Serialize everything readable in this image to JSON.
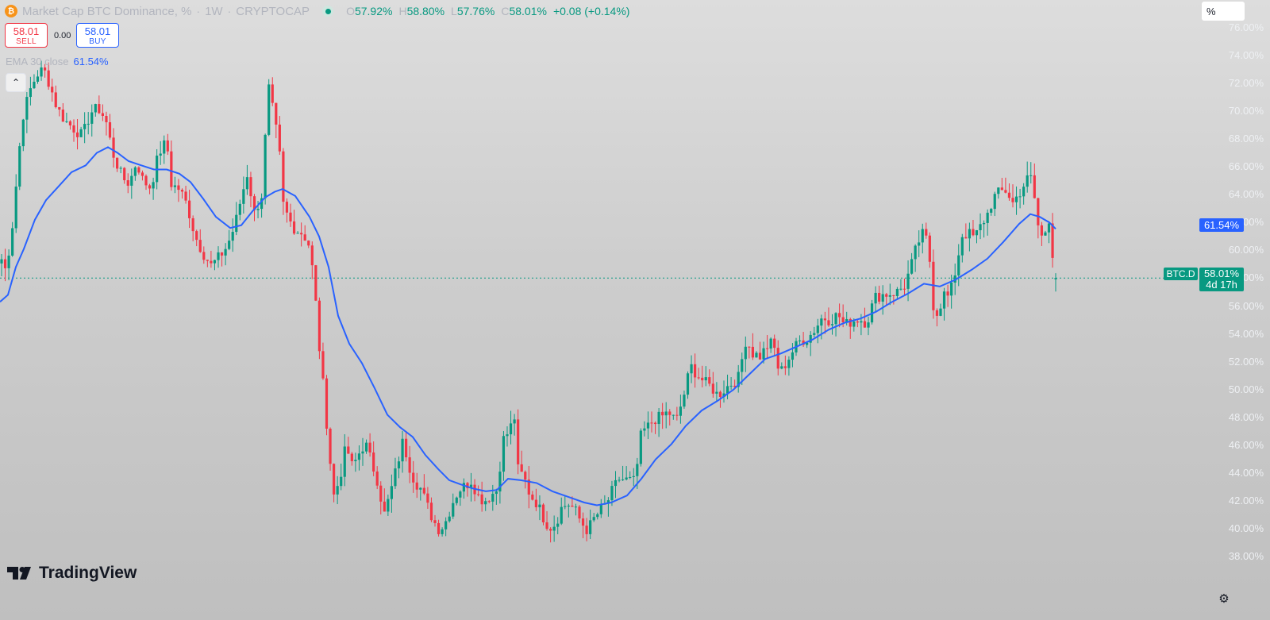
{
  "header": {
    "coin_icon": "bitcoin-icon",
    "coin_glyph": "₿",
    "title": "Market Cap BTC Dominance, %",
    "interval": "1W",
    "exchange": "CRYPTOCAP",
    "sep": "·",
    "ohlc": {
      "o_label": "O",
      "o": "57.92%",
      "h_label": "H",
      "h": "58.80%",
      "l_label": "L",
      "l": "57.76%",
      "c_label": "C",
      "c": "58.01%",
      "change": "+0.08 (+0.14%)"
    }
  },
  "trade": {
    "sell_price": "58.01",
    "sell_label": "SELL",
    "spread": "0.00",
    "buy_price": "58.01",
    "buy_label": "BUY"
  },
  "indicator": {
    "name": "EMA 30 close",
    "value": "61.54%"
  },
  "collapse_icon": "chevron-up-icon",
  "collapse_glyph": "⌃",
  "axis": {
    "unit": "%",
    "ema_tag": "61.54%",
    "symbol_tag": "BTC.D",
    "price_tag": "58.01%",
    "countdown": "4d 17h"
  },
  "brand": {
    "name": "TradingView",
    "logo_icon": "tradingview-logo-icon"
  },
  "settings_icon": "gear-icon",
  "colors": {
    "up": "#089981",
    "down": "#f23645",
    "ema": "#2962ff",
    "accent": "#2962ff"
  },
  "chart_data": {
    "type": "line",
    "title": "Market Cap BTC Dominance, %",
    "interval": "1W",
    "yaxis_side": "right",
    "ylim": [
      37.9,
      76.2
    ],
    "ytick_labels": [
      "76.00%",
      "74.00%",
      "72.00%",
      "70.00%",
      "68.00%",
      "66.00%",
      "64.00%",
      "62.00%",
      "60.00%",
      "58.00%",
      "56.00%",
      "54.00%",
      "52.00%",
      "50.00%",
      "48.00%",
      "46.00%",
      "44.00%",
      "42.00%",
      "40.00%",
      "38.00%"
    ],
    "grid": false,
    "current_price": 58.01,
    "series": [
      {
        "name": "BTC.D",
        "type": "candles",
        "color_up": "#089981",
        "color_down": "#f23645",
        "anchors": [
          [
            0,
            59.8
          ],
          [
            6,
            58.5
          ],
          [
            14,
            60.8
          ],
          [
            20,
            64.5
          ],
          [
            28,
            69.5
          ],
          [
            38,
            71.5
          ],
          [
            46,
            72.6
          ],
          [
            55,
            73.0
          ],
          [
            62,
            72.0
          ],
          [
            72,
            70.2
          ],
          [
            82,
            69.3
          ],
          [
            92,
            68.8
          ],
          [
            104,
            68.2
          ],
          [
            114,
            69.9
          ],
          [
            124,
            70.2
          ],
          [
            133,
            69.4
          ],
          [
            142,
            67.0
          ],
          [
            154,
            65.2
          ],
          [
            163,
            64.8
          ],
          [
            172,
            66.4
          ],
          [
            180,
            65.0
          ],
          [
            190,
            64.5
          ],
          [
            200,
            67.0
          ],
          [
            210,
            67.8
          ],
          [
            216,
            64.7
          ],
          [
            226,
            64.4
          ],
          [
            236,
            63.2
          ],
          [
            246,
            61.0
          ],
          [
            256,
            59.8
          ],
          [
            266,
            58.9
          ],
          [
            276,
            59.5
          ],
          [
            286,
            60.3
          ],
          [
            296,
            61.8
          ],
          [
            304,
            63.8
          ],
          [
            312,
            65.6
          ],
          [
            320,
            62.6
          ],
          [
            330,
            64.0
          ],
          [
            338,
            71.8
          ],
          [
            346,
            69.3
          ],
          [
            352,
            67.1
          ],
          [
            356,
            63.4
          ],
          [
            364,
            62.2
          ],
          [
            372,
            61.5
          ],
          [
            382,
            61.2
          ],
          [
            390,
            60.3
          ],
          [
            396,
            57.5
          ],
          [
            402,
            53.2
          ],
          [
            408,
            49.8
          ],
          [
            414,
            46.1
          ],
          [
            420,
            42.3
          ],
          [
            428,
            43.6
          ],
          [
            436,
            46.0
          ],
          [
            444,
            44.4
          ],
          [
            452,
            45.4
          ],
          [
            460,
            46.2
          ],
          [
            468,
            44.8
          ],
          [
            476,
            43.4
          ],
          [
            484,
            41.0
          ],
          [
            492,
            42.6
          ],
          [
            500,
            44.5
          ],
          [
            508,
            46.4
          ],
          [
            514,
            44.8
          ],
          [
            522,
            43.5
          ],
          [
            530,
            42.9
          ],
          [
            538,
            41.7
          ],
          [
            546,
            40.6
          ],
          [
            554,
            39.9
          ],
          [
            562,
            40.6
          ],
          [
            570,
            41.9
          ],
          [
            578,
            42.8
          ],
          [
            586,
            43.1
          ],
          [
            594,
            43.5
          ],
          [
            602,
            42.4
          ],
          [
            610,
            42.0
          ],
          [
            618,
            42.4
          ],
          [
            626,
            42.8
          ],
          [
            634,
            46.4
          ],
          [
            642,
            47.1
          ],
          [
            648,
            48.1
          ],
          [
            652,
            44.3
          ],
          [
            660,
            43.7
          ],
          [
            668,
            42.4
          ],
          [
            676,
            41.9
          ],
          [
            684,
            40.9
          ],
          [
            692,
            40.1
          ],
          [
            700,
            40.4
          ],
          [
            708,
            41.6
          ],
          [
            716,
            41.8
          ],
          [
            724,
            41.4
          ],
          [
            732,
            40.5
          ],
          [
            740,
            39.9
          ],
          [
            748,
            40.7
          ],
          [
            756,
            41.3
          ],
          [
            764,
            41.8
          ],
          [
            772,
            42.8
          ],
          [
            780,
            43.6
          ],
          [
            790,
            43.5
          ],
          [
            800,
            43.4
          ],
          [
            808,
            46.9
          ],
          [
            816,
            47.3
          ],
          [
            824,
            47.9
          ],
          [
            832,
            48.0
          ],
          [
            842,
            48.4
          ],
          [
            852,
            47.7
          ],
          [
            862,
            49.7
          ],
          [
            870,
            51.7
          ],
          [
            878,
            51.1
          ],
          [
            888,
            50.5
          ],
          [
            896,
            50.2
          ],
          [
            904,
            49.6
          ],
          [
            912,
            50.0
          ],
          [
            920,
            50.4
          ],
          [
            930,
            50.8
          ],
          [
            940,
            53.7
          ],
          [
            948,
            52.6
          ],
          [
            958,
            52.4
          ],
          [
            966,
            53.1
          ],
          [
            974,
            53.4
          ],
          [
            982,
            51.1
          ],
          [
            992,
            52.1
          ],
          [
            1000,
            52.9
          ],
          [
            1008,
            53.5
          ],
          [
            1018,
            53.7
          ],
          [
            1026,
            54.3
          ],
          [
            1036,
            55.2
          ],
          [
            1046,
            55.0
          ],
          [
            1056,
            55.4
          ],
          [
            1064,
            54.6
          ],
          [
            1072,
            54.9
          ],
          [
            1082,
            55.1
          ],
          [
            1092,
            54.8
          ],
          [
            1102,
            56.6
          ],
          [
            1110,
            56.8
          ],
          [
            1120,
            56.9
          ],
          [
            1130,
            57.0
          ],
          [
            1140,
            57.5
          ],
          [
            1148,
            58.9
          ],
          [
            1156,
            60.5
          ],
          [
            1164,
            61.3
          ],
          [
            1170,
            60.2
          ],
          [
            1176,
            56.0
          ],
          [
            1182,
            55.4
          ],
          [
            1188,
            56.9
          ],
          [
            1196,
            56.6
          ],
          [
            1204,
            58.6
          ],
          [
            1212,
            61.1
          ],
          [
            1220,
            61.2
          ],
          [
            1228,
            60.9
          ],
          [
            1236,
            61.8
          ],
          [
            1244,
            62.6
          ],
          [
            1252,
            63.8
          ],
          [
            1260,
            64.2
          ],
          [
            1268,
            64.3
          ],
          [
            1276,
            63.4
          ],
          [
            1284,
            64.1
          ],
          [
            1292,
            64.9
          ],
          [
            1298,
            65.4
          ],
          [
            1304,
            63.5
          ],
          [
            1310,
            60.8
          ],
          [
            1316,
            61.2
          ],
          [
            1322,
            62.4
          ],
          [
            1326,
            59.8
          ],
          [
            1330,
            58.01
          ]
        ]
      },
      {
        "name": "EMA 30 close",
        "type": "line",
        "color": "#2962ff",
        "points": [
          [
            0,
            56.3
          ],
          [
            10,
            56.8
          ],
          [
            20,
            58.8
          ],
          [
            30,
            60.1
          ],
          [
            44,
            62.2
          ],
          [
            58,
            63.6
          ],
          [
            74,
            64.6
          ],
          [
            90,
            65.6
          ],
          [
            108,
            66.1
          ],
          [
            122,
            67.0
          ],
          [
            136,
            67.4
          ],
          [
            148,
            67.0
          ],
          [
            162,
            66.4
          ],
          [
            178,
            66.1
          ],
          [
            194,
            65.8
          ],
          [
            210,
            65.8
          ],
          [
            226,
            65.5
          ],
          [
            240,
            64.9
          ],
          [
            256,
            63.7
          ],
          [
            272,
            62.4
          ],
          [
            290,
            61.6
          ],
          [
            304,
            61.8
          ],
          [
            318,
            62.8
          ],
          [
            334,
            63.8
          ],
          [
            346,
            64.2
          ],
          [
            356,
            64.4
          ],
          [
            372,
            63.9
          ],
          [
            390,
            62.4
          ],
          [
            402,
            61.0
          ],
          [
            414,
            58.8
          ],
          [
            426,
            55.3
          ],
          [
            440,
            53.3
          ],
          [
            456,
            51.9
          ],
          [
            472,
            50.1
          ],
          [
            488,
            48.2
          ],
          [
            504,
            47.3
          ],
          [
            520,
            46.6
          ],
          [
            536,
            45.3
          ],
          [
            552,
            44.3
          ],
          [
            566,
            43.5
          ],
          [
            580,
            43.2
          ],
          [
            596,
            42.9
          ],
          [
            612,
            42.7
          ],
          [
            626,
            42.8
          ],
          [
            640,
            43.6
          ],
          [
            656,
            43.5
          ],
          [
            676,
            43.3
          ],
          [
            696,
            42.7
          ],
          [
            716,
            42.3
          ],
          [
            736,
            41.9
          ],
          [
            752,
            41.7
          ],
          [
            770,
            41.9
          ],
          [
            790,
            42.4
          ],
          [
            808,
            43.6
          ],
          [
            826,
            45.0
          ],
          [
            846,
            46.1
          ],
          [
            864,
            47.4
          ],
          [
            884,
            48.5
          ],
          [
            904,
            49.2
          ],
          [
            924,
            50.0
          ],
          [
            944,
            51.1
          ],
          [
            964,
            52.2
          ],
          [
            984,
            52.6
          ],
          [
            1004,
            53.1
          ],
          [
            1024,
            53.6
          ],
          [
            1044,
            54.3
          ],
          [
            1064,
            54.8
          ],
          [
            1084,
            55.1
          ],
          [
            1104,
            55.6
          ],
          [
            1124,
            56.3
          ],
          [
            1144,
            56.9
          ],
          [
            1164,
            57.6
          ],
          [
            1184,
            57.4
          ],
          [
            1204,
            57.9
          ],
          [
            1224,
            58.6
          ],
          [
            1244,
            59.4
          ],
          [
            1264,
            60.6
          ],
          [
            1284,
            61.9
          ],
          [
            1298,
            62.6
          ],
          [
            1310,
            62.4
          ],
          [
            1322,
            62.0
          ],
          [
            1330,
            61.54
          ]
        ]
      }
    ]
  }
}
